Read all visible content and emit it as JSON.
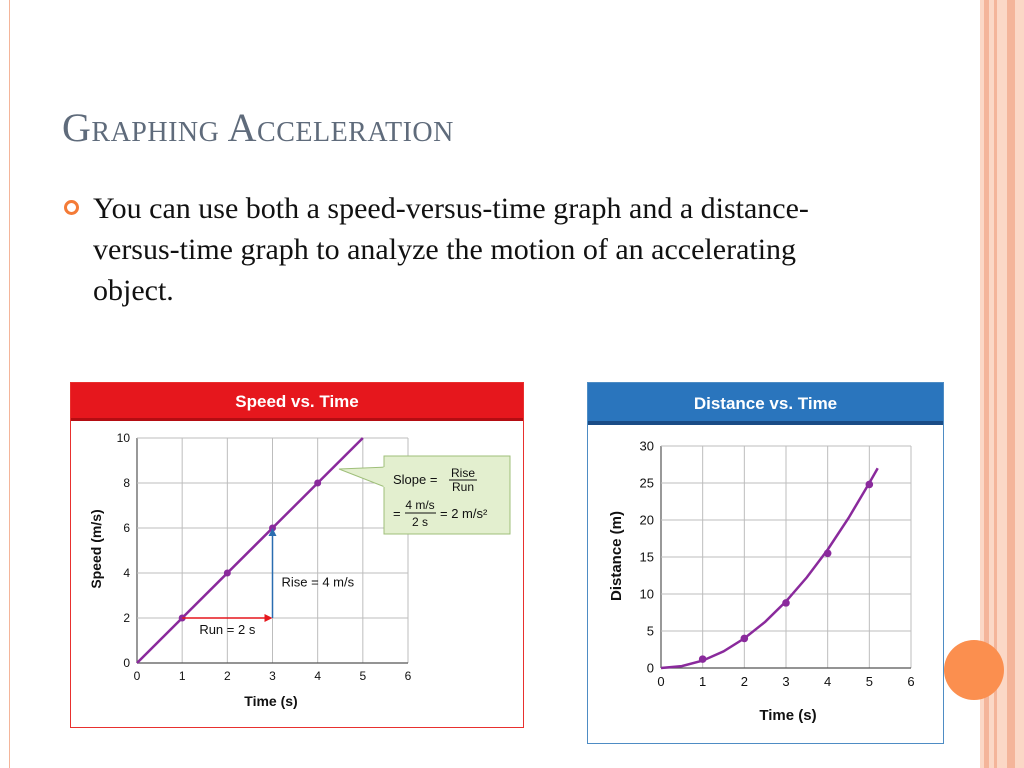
{
  "slide": {
    "title": "Graphing Acceleration",
    "bullet": "You can use both a speed-versus-time graph and a distance-versus-time graph to analyze the motion of an accelerating object."
  },
  "colors": {
    "stripe_light": "#fbd8c6",
    "stripe_dark": "#f4b59a",
    "accent_orange": "#fb8f4f",
    "curve_purple": "#8a2a9c",
    "speed_header": "#e6171d",
    "distance_header": "#2a75bd",
    "callout_fill": "#e3efcf"
  },
  "chart_data": [
    {
      "type": "line",
      "title": "Speed vs. Time",
      "xlabel": "Time (s)",
      "ylabel": "Speed (m/s)",
      "xlim": [
        0,
        6
      ],
      "ylim": [
        0,
        10
      ],
      "x_ticks": [
        "0",
        "1",
        "2",
        "3",
        "4",
        "5",
        "6"
      ],
      "y_ticks": [
        "0",
        "2",
        "4",
        "6",
        "8",
        "10"
      ],
      "grid": true,
      "line": {
        "x": [
          0,
          5
        ],
        "y": [
          0,
          10
        ]
      },
      "points": {
        "x": [
          1,
          2,
          3,
          4
        ],
        "y": [
          2,
          4,
          6,
          8
        ]
      },
      "annotations": {
        "run_label": "Run = 2 s",
        "rise_label": "Rise = 4 m/s",
        "slope_prefix": "Slope =",
        "rise_word": "Rise",
        "run_word": "Run",
        "equals": "=",
        "numerator": "4 m/s",
        "denominator": "2 s",
        "result": "= 2 m/s²"
      }
    },
    {
      "type": "line",
      "title": "Distance vs. Time",
      "xlabel": "Time (s)",
      "ylabel": "Distance (m)",
      "xlim": [
        0,
        6
      ],
      "ylim": [
        0,
        30
      ],
      "x_ticks": [
        "0",
        "1",
        "2",
        "3",
        "4",
        "5",
        "6"
      ],
      "y_ticks": [
        "0",
        "5",
        "10",
        "15",
        "20",
        "25",
        "30"
      ],
      "grid": true,
      "curve": {
        "x": [
          0,
          0.5,
          1,
          1.5,
          2,
          2.5,
          3,
          3.5,
          4,
          4.5,
          5,
          5.2
        ],
        "y": [
          0,
          0.25,
          1,
          2.25,
          4,
          6.25,
          9,
          12.25,
          16,
          20.25,
          25,
          27
        ]
      },
      "points": {
        "x": [
          1,
          2,
          3,
          4,
          5
        ],
        "y": [
          1.2,
          4,
          8.8,
          15.5,
          24.8
        ]
      }
    }
  ]
}
